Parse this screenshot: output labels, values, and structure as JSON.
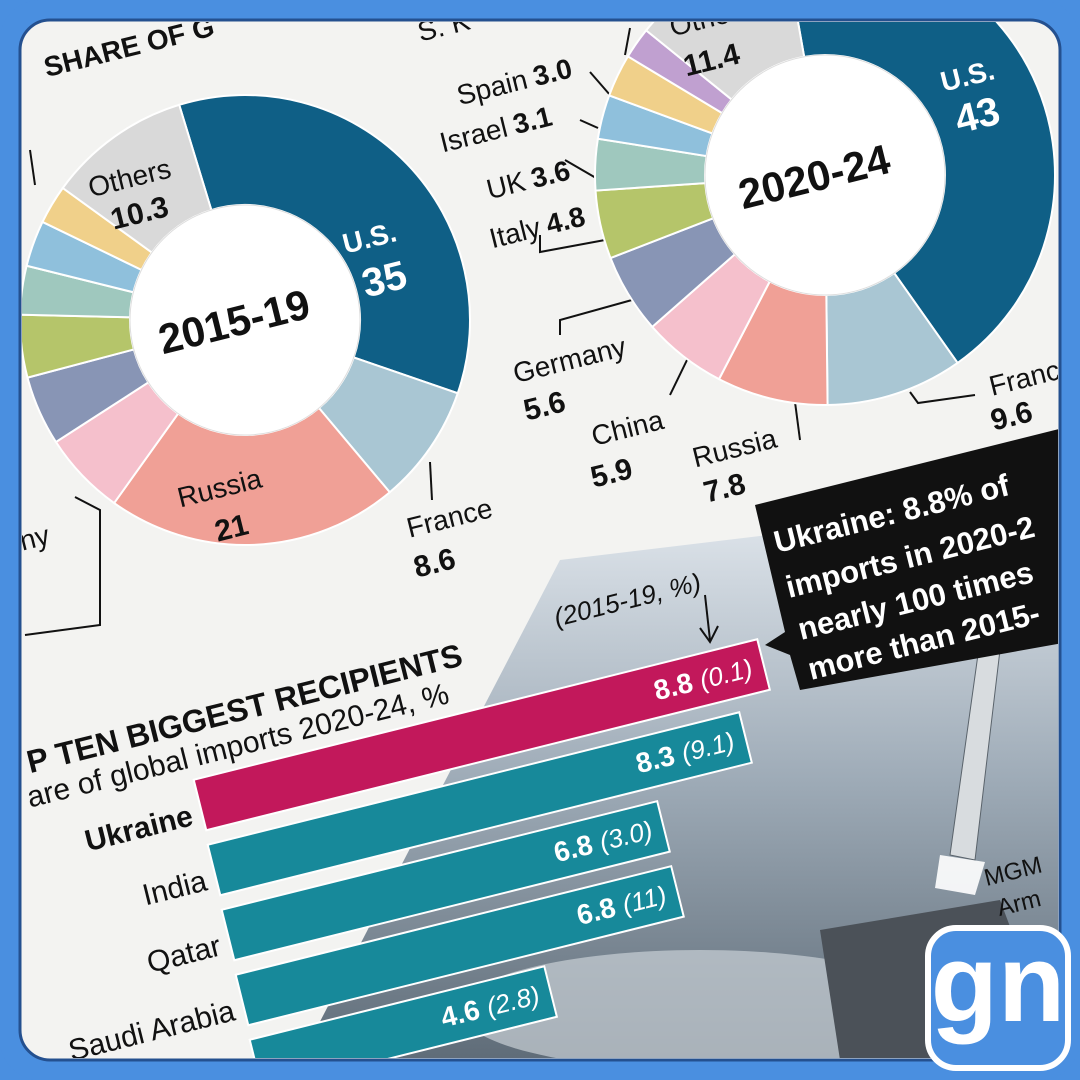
{
  "header": {
    "title": "SHARE OF G"
  },
  "chart_data": [
    {
      "type": "pie",
      "center_label": "2015-19",
      "categories": [
        "U.S.",
        "France",
        "Russia",
        "ny",
        null,
        null,
        null,
        null,
        null,
        "Others"
      ],
      "values": [
        35,
        8.6,
        21,
        6.0,
        5.0,
        4.5,
        3.5,
        3.3,
        2.8,
        10.3
      ],
      "value_labels": [
        "35",
        "8.6",
        "21",
        null,
        null,
        null,
        null,
        null,
        null,
        "10.3"
      ],
      "colors": [
        "#0f5f86",
        "#a9c6d3",
        "#f0a096",
        "#f5c0cc",
        "#8895b5",
        "#b5c56a",
        "#9fc8be",
        "#8fc0dc",
        "#f0d08a",
        "#d9d9d9"
      ]
    },
    {
      "type": "pie",
      "center_label": "2020-24",
      "categories": [
        "U.S.",
        "Franc",
        "Russia",
        "China",
        "Germany",
        "Italy",
        "UK",
        "Israel",
        "Spain",
        "S. K",
        "Othe"
      ],
      "values": [
        43,
        9.6,
        7.8,
        5.9,
        5.6,
        4.8,
        3.6,
        3.1,
        3.0,
        2.2,
        11.4
      ],
      "value_labels": [
        "43",
        "9.6",
        "7.8",
        "5.9",
        "5.6",
        "4.8",
        "3.6",
        "3.1",
        "3.0",
        null,
        "11.4"
      ],
      "colors": [
        "#0f5f86",
        "#a9c6d3",
        "#f0a096",
        "#f5c0cc",
        "#8895b5",
        "#b5c56a",
        "#9fc8be",
        "#8fc0dc",
        "#f0d08a",
        "#c0a0d0",
        "#d9d9d9"
      ]
    },
    {
      "type": "bar",
      "title": "P TEN BIGGEST RECIPIENTS",
      "subtitle": "are of global imports 2020-24, %",
      "note": "(2015-19, %)",
      "categories": [
        "Ukraine",
        "India",
        "Qatar",
        "Saudi Arabia",
        null
      ],
      "values": [
        8.8,
        8.3,
        6.8,
        6.8,
        4.6
      ],
      "prior_values": [
        0.1,
        9.1,
        3.0,
        11,
        2.8
      ],
      "prior_labels": [
        "(0.1)",
        "(9.1)",
        "(3.0)",
        "(11)",
        "(2.8)"
      ],
      "colors": [
        "#c2185b",
        "#17899a",
        "#17899a",
        "#17899a",
        "#17899a"
      ]
    }
  ],
  "callout": {
    "lines": [
      "Ukraine: 8.8% of",
      "imports in 2020-2",
      "nearly 100 times",
      "more than 2015-"
    ]
  },
  "photo_caption": [
    "MGM",
    "Arm"
  ],
  "logo": "gn"
}
